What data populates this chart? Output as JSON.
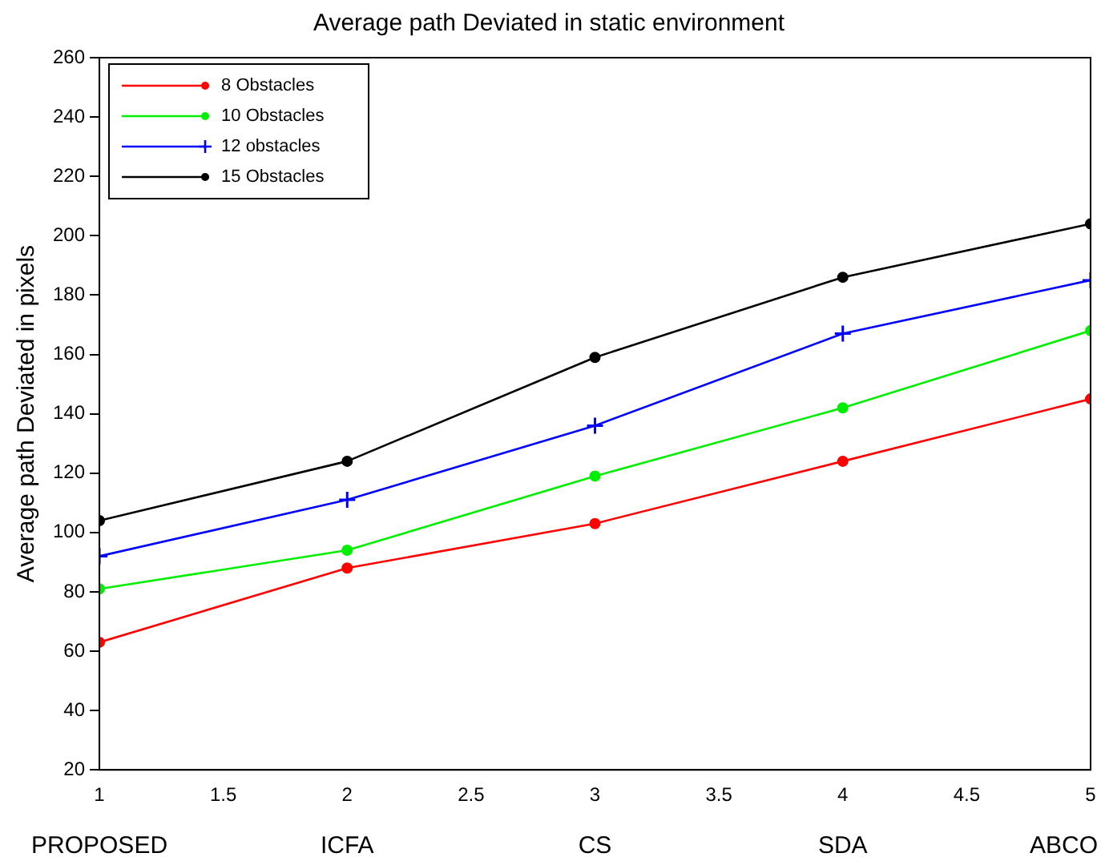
{
  "chart_data": {
    "type": "line",
    "title": "Average path Deviated in static environment",
    "ylabel": "Average path Deviated in pixels",
    "x": [
      1,
      2,
      3,
      4,
      5
    ],
    "xlim": [
      1,
      5
    ],
    "xticks": [
      1,
      1.5,
      2,
      2.5,
      3,
      3.5,
      4,
      4.5,
      5
    ],
    "ylim": [
      20,
      260
    ],
    "yticks": [
      20,
      40,
      60,
      80,
      100,
      120,
      140,
      160,
      180,
      200,
      220,
      240,
      260
    ],
    "grid": false,
    "legend": "top left",
    "marker": "circle",
    "line_style": "solid",
    "series": [
      {
        "name": "8 Obstacles",
        "color": "#ff0000",
        "values": [
          63,
          88,
          103,
          124,
          145
        ]
      },
      {
        "name": "10 Obstacles",
        "color": "#00ee00",
        "values": [
          81,
          94,
          119,
          142,
          168
        ]
      },
      {
        "name": "12 obstacles",
        "color": "#0000ff",
        "marker": "cross",
        "values": [
          92,
          111,
          136,
          167,
          185
        ]
      },
      {
        "name": "15 Obstacles",
        "color": "#000000",
        "values": [
          104,
          124,
          159,
          186,
          204
        ]
      }
    ],
    "annotations": [
      "PROPOSED",
      "ICFA",
      "CS",
      "SDA",
      "ABCO"
    ]
  }
}
